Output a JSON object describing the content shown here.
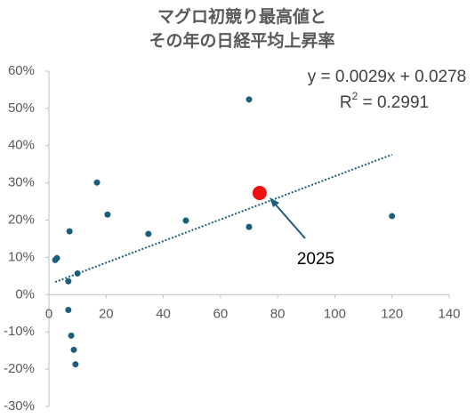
{
  "chart_data": {
    "type": "scatter",
    "title": [
      "マグロ初競り最高値と",
      "その年の日経平均上昇率"
    ],
    "xlim": [
      0,
      140
    ],
    "xticks": [
      0,
      20,
      40,
      60,
      80,
      100,
      120,
      140
    ],
    "ylim": [
      -30,
      60
    ],
    "yticks": [
      {
        "value": -30,
        "label": "-30%"
      },
      {
        "value": -20,
        "label": "-20%"
      },
      {
        "value": -10,
        "label": "-10%"
      },
      {
        "value": 0,
        "label": "0%"
      },
      {
        "value": 10,
        "label": "10%"
      },
      {
        "value": 20,
        "label": "20%"
      },
      {
        "value": 30,
        "label": "30%"
      },
      {
        "value": 40,
        "label": "40%"
      },
      {
        "value": 50,
        "label": "50%"
      },
      {
        "value": 60,
        "label": "60%"
      }
    ],
    "grid": false,
    "series": [
      {
        "color": "#1b5e7b",
        "x": [
          2.2,
          2.8,
          7.2,
          6.8,
          10,
          16.8,
          20.5,
          34.8,
          47.9,
          70,
          70,
          120,
          6.8,
          7.8,
          8.7,
          9.3
        ],
        "values": [
          9.3,
          9.8,
          17,
          3.6,
          5.7,
          30.1,
          21.5,
          16.3,
          19.9,
          52.4,
          18.2,
          21.1,
          -4.1,
          -11,
          -14.8,
          -18.7
        ]
      },
      {
        "color": "#ee1111",
        "x": [
          73.7
        ],
        "values": [
          27.3
        ]
      }
    ],
    "trendline": {
      "color": "#1b5e7b",
      "x": [
        2.2,
        120
      ],
      "values": [
        3.4,
        37.6
      ]
    },
    "equation": "y = 0.0029x + 0.0278",
    "r_squared": {
      "symbol": "R",
      "exponent": "2",
      "text": " = 0.2991"
    },
    "annotations": [
      {
        "text": "2025"
      }
    ]
  }
}
